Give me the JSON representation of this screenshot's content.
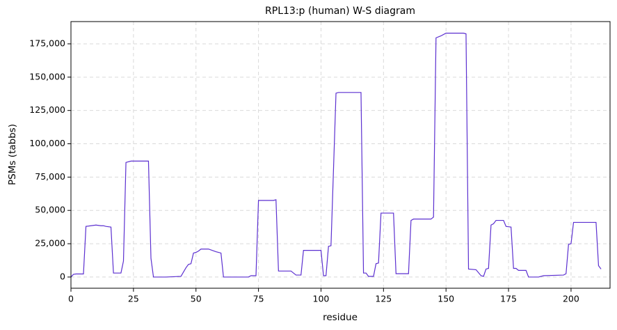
{
  "chart_data": {
    "type": "line",
    "title": "RPL13:p (human) W-S diagram",
    "x_label": "residue",
    "y_label": "PSMs (tabbs)",
    "x": [
      0,
      1,
      2,
      5,
      6,
      10,
      12,
      13,
      14,
      16,
      17,
      20,
      21,
      22,
      24,
      31,
      32,
      33,
      38,
      44,
      46,
      47,
      48,
      49,
      50,
      51,
      52,
      55,
      58,
      60,
      61,
      71,
      72,
      74,
      75,
      81,
      82,
      83,
      88,
      90,
      92,
      93,
      100,
      101,
      102,
      103,
      104,
      106,
      107,
      116,
      117,
      118,
      119,
      121,
      122,
      123,
      124,
      129,
      130,
      135,
      136,
      137,
      144,
      145,
      146,
      148,
      150,
      157,
      158,
      159,
      162,
      164,
      165,
      166,
      167,
      168,
      169,
      170,
      173,
      174,
      176,
      177,
      178,
      179,
      182,
      183,
      187,
      189,
      197,
      198,
      199,
      200,
      201,
      210,
      211,
      212
    ],
    "series": [
      {
        "name": "RPL13:p",
        "color": "#5b2fd0",
        "values": [
          0,
          2000,
          2300,
          2300,
          38000,
          39000,
          38500,
          38500,
          38000,
          37500,
          3000,
          3000,
          12000,
          86000,
          87000,
          87000,
          14000,
          0,
          0,
          500,
          7000,
          9500,
          10000,
          18000,
          18500,
          19500,
          21000,
          21000,
          19000,
          18000,
          0,
          0,
          1000,
          1000,
          57500,
          57500,
          58000,
          4500,
          4500,
          1500,
          1500,
          20000,
          20000,
          1000,
          1000,
          23000,
          23500,
          138000,
          138500,
          138500,
          3000,
          3000,
          500,
          500,
          10000,
          10500,
          48000,
          48000,
          2500,
          2500,
          42500,
          43500,
          43500,
          45000,
          179500,
          181000,
          183000,
          183000,
          182500,
          6000,
          5500,
          1000,
          500,
          6000,
          6500,
          39000,
          40000,
          42500,
          42500,
          38000,
          37500,
          6500,
          6500,
          5000,
          5000,
          0,
          0,
          1000,
          1500,
          2500,
          24500,
          25000,
          41000,
          41000,
          8500,
          6000
        ]
      }
    ],
    "xlim": [
      0,
      215.6
    ],
    "ylim": [
      -8400,
      191700
    ],
    "xticks": [
      0,
      25,
      50,
      75,
      100,
      125,
      150,
      175,
      200
    ],
    "yticks": [
      0,
      {
        "value": 25000,
        "label": "25,000"
      },
      {
        "value": 50000,
        "label": "50,000"
      },
      {
        "value": 75000,
        "label": "75,000"
      },
      {
        "value": 100000,
        "label": "100,000"
      },
      {
        "value": 125000,
        "label": "125,000"
      },
      {
        "value": 150000,
        "label": "150,000"
      },
      {
        "value": 175000,
        "label": "175,000"
      }
    ],
    "grid": true
  }
}
